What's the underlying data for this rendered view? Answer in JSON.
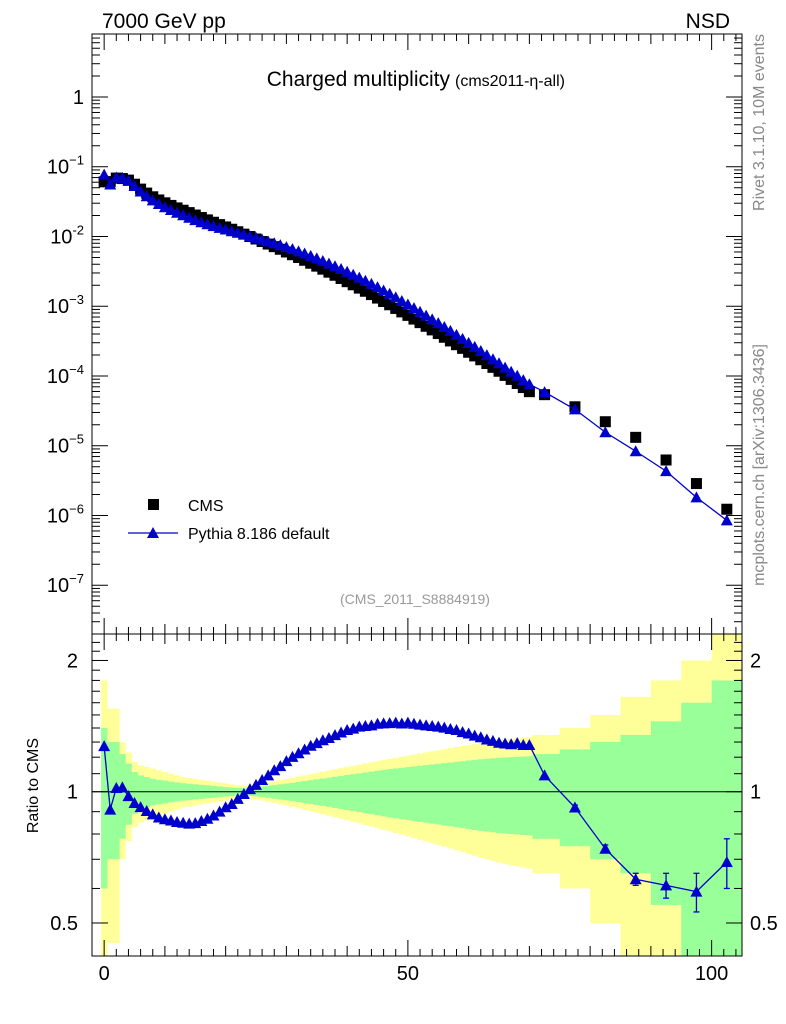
{
  "header": {
    "energy_label": "7000 GeV pp",
    "process_label": "NSD",
    "side_label_top": "Rivet 3.1.10,  10M events",
    "side_label_bottom": "mcplots.cern.ch [arXiv:1306.3436]"
  },
  "colors": {
    "mc": "#0000cc",
    "data": "#000000",
    "band_inner": "#99ff99",
    "band_outer": "#ffff99"
  },
  "chart_data": [
    {
      "type": "scatter",
      "title": "Charged multiplicity",
      "subtitle": "(cms2011-η-all)",
      "analysis_label": "(CMS_2011_S8884919)",
      "xlabel": "",
      "ylabel": "",
      "yscale": "log",
      "xlim": [
        -2,
        105
      ],
      "ylim": [
        2e-08,
        8
      ],
      "y_ticks": [
        {
          "value": 1,
          "label": "1"
        },
        {
          "value": 0.1,
          "base": "10",
          "exp": "−1"
        },
        {
          "value": 0.01,
          "base": "10",
          "exp": "-2"
        },
        {
          "value": 0.001,
          "base": "10",
          "exp": "−3"
        },
        {
          "value": 0.0001,
          "base": "10",
          "exp": "−4"
        },
        {
          "value": 1e-05,
          "base": "10",
          "exp": "−5"
        },
        {
          "value": 1e-06,
          "base": "10",
          "exp": "−6"
        },
        {
          "value": 1e-07,
          "base": "10",
          "exp": "−7"
        }
      ],
      "legend": {
        "position": "bottom-left",
        "entries": [
          "CMS",
          "Pythia 8.186 default"
        ]
      },
      "series": [
        {
          "name": "CMS",
          "marker": "square",
          "x": [
            0,
            1,
            2,
            3,
            4,
            5,
            6,
            7,
            8,
            9,
            10,
            11,
            12,
            13,
            14,
            15,
            16,
            17,
            18,
            19,
            20,
            21,
            22,
            23,
            24,
            25,
            26,
            27,
            28,
            29,
            30,
            31,
            32,
            33,
            34,
            35,
            36,
            37,
            38,
            39,
            40,
            41,
            42,
            43,
            44,
            45,
            46,
            47,
            48,
            49,
            50,
            51,
            52,
            53,
            54,
            55,
            56,
            57,
            58,
            59,
            60,
            61,
            62,
            63,
            64,
            65,
            66,
            67,
            68,
            69,
            70,
            72.5,
            77.5,
            82.5,
            87.5,
            92.5,
            97.5,
            102.5
          ],
          "y": [
            0.0607,
            0.0612,
            0.0688,
            0.0677,
            0.0643,
            0.0562,
            0.0478,
            0.0419,
            0.0371,
            0.0334,
            0.0304,
            0.0279,
            0.0257,
            0.0238,
            0.022,
            0.0203,
            0.0187,
            0.0173,
            0.016,
            0.0148,
            0.0137,
            0.0127,
            0.0117,
            0.0108,
            0.00999,
            0.00921,
            0.00847,
            0.00779,
            0.00715,
            0.00656,
            0.006,
            0.00548,
            0.005,
            0.00456,
            0.00414,
            0.00376,
            0.0034,
            0.00308,
            0.00278,
            0.0025,
            0.00225,
            0.00203,
            0.00182,
            0.00164,
            0.00147,
            0.00131,
            0.00117,
            0.00105,
            0.00093,
            0.00083,
            0.00074,
            0.000655,
            0.000582,
            0.000516,
            0.000458,
            0.000406,
            0.000359,
            0.000318,
            0.000281,
            0.000249,
            0.000219,
            0.000194,
            0.000171,
            0.000151,
            0.000133,
            0.000117,
            0.000102,
            8.94e-05,
            7.81e-05,
            6.82e-05,
            5.96e-05,
            5.4e-05,
            3.62e-05,
            2.21e-05,
            1.32e-05,
            6.25e-06,
            2.87e-06,
            1.23e-06
          ]
        },
        {
          "name": "Pythia 8.186 default",
          "marker": "triangle",
          "x": [
            0,
            1,
            2,
            3,
            4,
            5,
            6,
            7,
            8,
            9,
            10,
            11,
            12,
            13,
            14,
            15,
            16,
            17,
            18,
            19,
            20,
            21,
            22,
            23,
            24,
            25,
            26,
            27,
            28,
            29,
            30,
            31,
            32,
            33,
            34,
            35,
            36,
            37,
            38,
            39,
            40,
            41,
            42,
            43,
            44,
            45,
            46,
            47,
            48,
            49,
            50,
            51,
            52,
            53,
            54,
            55,
            56,
            57,
            58,
            59,
            60,
            61,
            62,
            63,
            64,
            65,
            66,
            67,
            68,
            69,
            70,
            72.5,
            77.5,
            82.5,
            87.5,
            92.5,
            97.5,
            102.5
          ],
          "y": [
            0.0772,
            0.0557,
            0.0701,
            0.0693,
            0.0628,
            0.0529,
            0.0441,
            0.0378,
            0.0329,
            0.0292,
            0.0263,
            0.024,
            0.0219,
            0.0202,
            0.0186,
            0.0172,
            0.016,
            0.015,
            0.0141,
            0.0133,
            0.0126,
            0.0119,
            0.0113,
            0.0107,
            0.0101,
            0.00955,
            0.00901,
            0.00849,
            0.00801,
            0.00751,
            0.00705,
            0.00659,
            0.00613,
            0.0057,
            0.00528,
            0.00486,
            0.00446,
            0.00409,
            0.00375,
            0.00342,
            0.00312,
            0.00283,
            0.00257,
            0.00232,
            0.00209,
            0.00188,
            0.00168,
            0.00151,
            0.00134,
            0.00119,
            0.00106,
            0.000938,
            0.000829,
            0.000733,
            0.000648,
            0.000572,
            0.000504,
            0.000443,
            0.000389,
            0.000341,
            0.000298,
            0.000261,
            0.000228,
            0.000199,
            0.000174,
            0.000152,
            0.000132,
            0.000115,
            0.000101,
            8.73e-05,
            7.63e-05,
            5.88e-05,
            3.32e-05,
            1.56e-05,
            8.34e-06,
            4.33e-06,
            1.82e-06,
            8.52e-07
          ]
        }
      ]
    },
    {
      "type": "line",
      "ylabel": "Ratio to CMS",
      "xlim": [
        -2,
        105
      ],
      "ylim": [
        0.42,
        2.3
      ],
      "x_ticks": [
        "0",
        "50",
        "100"
      ],
      "y_ticks": [
        "0.5",
        "1",
        "2"
      ],
      "bin_edges": [
        -0.5,
        0.5,
        1.5,
        2.5,
        3.5,
        4.5,
        5.5,
        6.5,
        7.5,
        8.5,
        9.5,
        10.5,
        11.5,
        12.5,
        13.5,
        14.5,
        15.5,
        16.5,
        17.5,
        18.5,
        19.5,
        20.5,
        21.5,
        22.5,
        23.5,
        24.5,
        25.5,
        26.5,
        27.5,
        28.5,
        29.5,
        30.5,
        31.5,
        32.5,
        33.5,
        34.5,
        35.5,
        36.5,
        37.5,
        38.5,
        39.5,
        40.5,
        41.5,
        42.5,
        43.5,
        44.5,
        45.5,
        46.5,
        47.5,
        48.5,
        49.5,
        50.5,
        51.5,
        52.5,
        53.5,
        54.5,
        55.5,
        56.5,
        57.5,
        58.5,
        59.5,
        60.5,
        61.5,
        62.5,
        63.5,
        64.5,
        65.5,
        66.5,
        67.5,
        68.5,
        69.5,
        70.5,
        75,
        80,
        85,
        90,
        95,
        100,
        105
      ],
      "band_inner": [
        0.4,
        0.3,
        0.3,
        0.22,
        0.16,
        0.11,
        0.09,
        0.08,
        0.07,
        0.065,
        0.06,
        0.055,
        0.05,
        0.046,
        0.043,
        0.04,
        0.037,
        0.034,
        0.031,
        0.028,
        0.025,
        0.022,
        0.02,
        0.02,
        0.021,
        0.024,
        0.028,
        0.032,
        0.036,
        0.04,
        0.044,
        0.048,
        0.053,
        0.058,
        0.063,
        0.068,
        0.072,
        0.077,
        0.082,
        0.087,
        0.092,
        0.097,
        0.102,
        0.107,
        0.112,
        0.117,
        0.122,
        0.127,
        0.131,
        0.135,
        0.139,
        0.143,
        0.147,
        0.151,
        0.155,
        0.159,
        0.163,
        0.167,
        0.171,
        0.175,
        0.179,
        0.183,
        0.187,
        0.19,
        0.193,
        0.196,
        0.198,
        0.2,
        0.202,
        0.204,
        0.206,
        0.22,
        0.25,
        0.3,
        0.35,
        0.45,
        0.6,
        0.8
      ],
      "band_outer": [
        0.8,
        0.55,
        0.55,
        0.3,
        0.23,
        0.17,
        0.15,
        0.14,
        0.13,
        0.12,
        0.11,
        0.1,
        0.09,
        0.08,
        0.075,
        0.07,
        0.065,
        0.06,
        0.055,
        0.05,
        0.045,
        0.04,
        0.035,
        0.032,
        0.035,
        0.04,
        0.046,
        0.052,
        0.058,
        0.064,
        0.07,
        0.077,
        0.084,
        0.091,
        0.098,
        0.105,
        0.112,
        0.119,
        0.126,
        0.133,
        0.14,
        0.147,
        0.154,
        0.161,
        0.168,
        0.175,
        0.182,
        0.189,
        0.196,
        0.203,
        0.21,
        0.217,
        0.224,
        0.231,
        0.238,
        0.245,
        0.252,
        0.259,
        0.266,
        0.273,
        0.28,
        0.287,
        0.294,
        0.3,
        0.306,
        0.312,
        0.318,
        0.322,
        0.326,
        0.33,
        0.334,
        0.35,
        0.4,
        0.5,
        0.65,
        0.8,
        1.0,
        1.3
      ],
      "series": [
        {
          "name": "Pythia 8.186 default / CMS",
          "x": [
            0,
            1,
            2,
            3,
            4,
            5,
            6,
            7,
            8,
            9,
            10,
            11,
            12,
            13,
            14,
            15,
            16,
            17,
            18,
            19,
            20,
            21,
            22,
            23,
            24,
            25,
            26,
            27,
            28,
            29,
            30,
            31,
            32,
            33,
            34,
            35,
            36,
            37,
            38,
            39,
            40,
            41,
            42,
            43,
            44,
            45,
            46,
            47,
            48,
            49,
            50,
            51,
            52,
            53,
            54,
            55,
            56,
            57,
            58,
            59,
            60,
            61,
            62,
            63,
            64,
            65,
            66,
            67,
            68,
            69,
            70,
            72.5,
            77.5,
            82.5,
            87.5,
            92.5,
            97.5,
            102.5
          ],
          "y": [
            1.272,
            0.91,
            1.02,
            1.023,
            0.977,
            0.942,
            0.922,
            0.903,
            0.887,
            0.873,
            0.865,
            0.859,
            0.852,
            0.849,
            0.845,
            0.847,
            0.857,
            0.867,
            0.882,
            0.9,
            0.921,
            0.937,
            0.963,
            0.988,
            1.014,
            1.037,
            1.064,
            1.09,
            1.12,
            1.145,
            1.175,
            1.202,
            1.225,
            1.25,
            1.275,
            1.293,
            1.312,
            1.328,
            1.348,
            1.367,
            1.385,
            1.395,
            1.41,
            1.415,
            1.42,
            1.432,
            1.435,
            1.437,
            1.44,
            1.434,
            1.44,
            1.432,
            1.425,
            1.42,
            1.415,
            1.41,
            1.403,
            1.393,
            1.385,
            1.37,
            1.36,
            1.345,
            1.333,
            1.318,
            1.308,
            1.295,
            1.29,
            1.285,
            1.293,
            1.28,
            1.28,
            1.09,
            0.92,
            0.74,
            0.63,
            0.61,
            0.59,
            0.69
          ],
          "yerr": [
            0.01,
            0.01,
            0.01,
            0.01,
            0.01,
            0.01,
            0.01,
            0.01,
            0.01,
            0.01,
            0.01,
            0.01,
            0.01,
            0.01,
            0.01,
            0.01,
            0.01,
            0.01,
            0.01,
            0.01,
            0.01,
            0.01,
            0.01,
            0.01,
            0.01,
            0.01,
            0.01,
            0.01,
            0.01,
            0.01,
            0.01,
            0.01,
            0.01,
            0.01,
            0.01,
            0.01,
            0.01,
            0.01,
            0.01,
            0.01,
            0.01,
            0.01,
            0.01,
            0.01,
            0.01,
            0.01,
            0.01,
            0.01,
            0.01,
            0.01,
            0.01,
            0.01,
            0.01,
            0.01,
            0.01,
            0.01,
            0.01,
            0.01,
            0.01,
            0.01,
            0.01,
            0.01,
            0.01,
            0.01,
            0.01,
            0.01,
            0.01,
            0.01,
            0.01,
            0.01,
            0.01,
            0.01,
            0.012,
            0.015,
            0.02,
            0.04,
            0.06,
            0.09
          ]
        }
      ]
    }
  ]
}
